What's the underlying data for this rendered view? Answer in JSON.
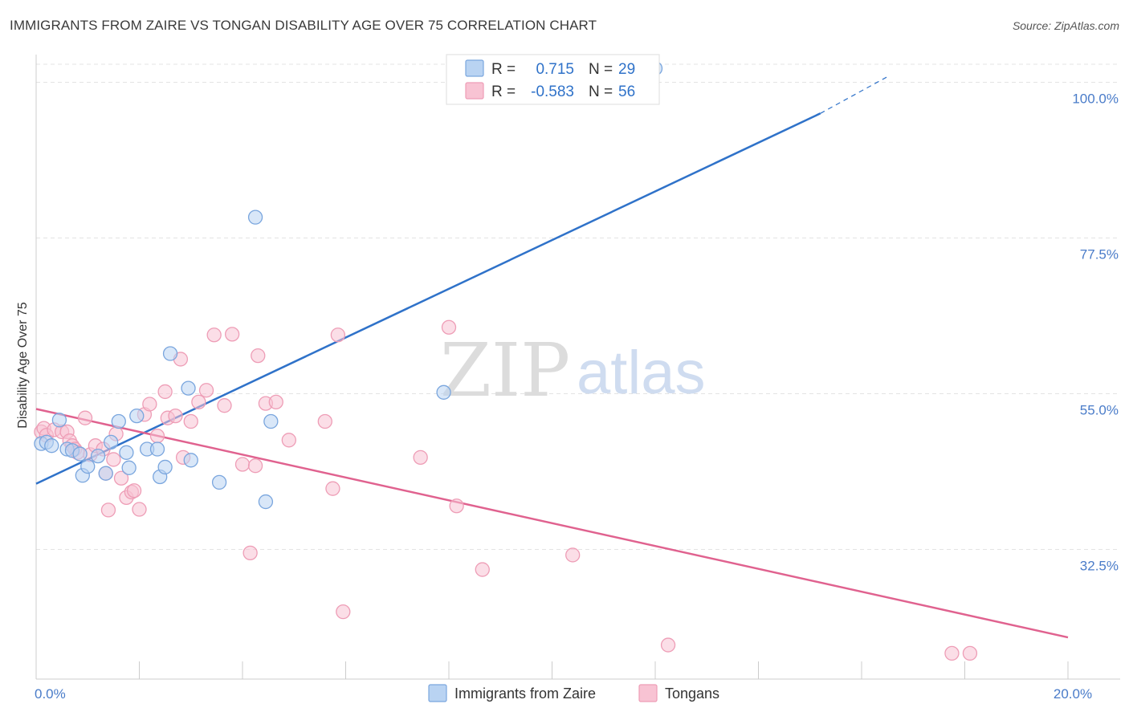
{
  "title": "IMMIGRANTS FROM ZAIRE VS TONGAN DISABILITY AGE OVER 75 CORRELATION CHART",
  "source": "Source: ZipAtlas.com",
  "watermark": {
    "zip": "ZIP",
    "atlas": "atlas"
  },
  "colors": {
    "blue_fill": "#b9d3f2",
    "blue_stroke": "#7aa6de",
    "blue_line": "#2f72c9",
    "pink_fill": "#f8c3d3",
    "pink_stroke": "#ee9db6",
    "pink_line": "#e0628f",
    "grid": "#e3e3e3",
    "tick_text": "#4a7cc9"
  },
  "legend": [
    {
      "r_label": "R =",
      "r_value": "0.715",
      "n_label": "N =",
      "n_value": "29"
    },
    {
      "r_label": "R =",
      "r_value": "-0.583",
      "n_label": "N =",
      "n_value": "56"
    }
  ],
  "chart_data": {
    "type": "scatter",
    "title": "IMMIGRANTS FROM ZAIRE VS TONGAN DISABILITY AGE OVER 75 CORRELATION CHART",
    "xlabel": "",
    "ylabel": "Disability Age Over 75",
    "xlim": [
      0,
      20
    ],
    "ylim": [
      15.4,
      104
    ],
    "x_tick_labels": [
      {
        "value": 0,
        "label": "0.0%"
      },
      {
        "value": 20,
        "label": "20.0%"
      }
    ],
    "x_minor_ticks": [
      2,
      4,
      6,
      8,
      10,
      12,
      14,
      16,
      18,
      20
    ],
    "y_ticks": [
      {
        "value": 32.5,
        "label": "32.5%"
      },
      {
        "value": 55.0,
        "label": "55.0%"
      },
      {
        "value": 77.5,
        "label": "77.5%"
      },
      {
        "value": 100.0,
        "label": "100.0%"
      }
    ],
    "series": [
      {
        "name": "Immigrants from Zaire",
        "color": "blue",
        "r": 0.715,
        "n": 29,
        "points": [
          [
            0.1,
            47.8
          ],
          [
            0.2,
            48.0
          ],
          [
            0.3,
            47.5
          ],
          [
            0.45,
            51.2
          ],
          [
            0.6,
            47.0
          ],
          [
            0.7,
            46.8
          ],
          [
            0.85,
            46.3
          ],
          [
            0.9,
            43.2
          ],
          [
            1.0,
            44.5
          ],
          [
            1.2,
            46.0
          ],
          [
            1.35,
            43.5
          ],
          [
            1.45,
            48.0
          ],
          [
            1.6,
            51.0
          ],
          [
            1.75,
            46.5
          ],
          [
            1.8,
            44.3
          ],
          [
            1.95,
            51.8
          ],
          [
            2.15,
            47.0
          ],
          [
            2.35,
            47.0
          ],
          [
            2.4,
            43.0
          ],
          [
            2.5,
            44.4
          ],
          [
            2.6,
            60.8
          ],
          [
            2.95,
            55.8
          ],
          [
            3.0,
            45.4
          ],
          [
            3.55,
            42.2
          ],
          [
            4.25,
            80.5
          ],
          [
            4.45,
            39.4
          ],
          [
            4.55,
            51.0
          ],
          [
            7.9,
            55.2
          ],
          [
            12.0,
            102.0
          ]
        ],
        "trend": {
          "x1": 0,
          "y1": 42.0,
          "x2": 15.2,
          "y2": 95.5,
          "dash_x2": 16.5,
          "dash_y2": 100.8
        }
      },
      {
        "name": "Tongans",
        "color": "pink",
        "r": -0.583,
        "n": 56,
        "points": [
          [
            0.1,
            49.5
          ],
          [
            0.15,
            50.0
          ],
          [
            0.2,
            49.0
          ],
          [
            0.35,
            49.8
          ],
          [
            0.5,
            49.5
          ],
          [
            0.6,
            49.5
          ],
          [
            0.65,
            48.2
          ],
          [
            0.7,
            47.5
          ],
          [
            0.75,
            47.0
          ],
          [
            0.8,
            46.5
          ],
          [
            0.95,
            51.5
          ],
          [
            1.05,
            46.2
          ],
          [
            1.15,
            47.5
          ],
          [
            1.3,
            47.0
          ],
          [
            1.35,
            43.5
          ],
          [
            1.4,
            38.2
          ],
          [
            1.5,
            45.5
          ],
          [
            1.55,
            49.2
          ],
          [
            1.65,
            42.8
          ],
          [
            1.75,
            40.0
          ],
          [
            1.85,
            40.8
          ],
          [
            1.9,
            41.0
          ],
          [
            2.0,
            38.3
          ],
          [
            2.1,
            52.0
          ],
          [
            2.2,
            53.5
          ],
          [
            2.35,
            48.9
          ],
          [
            2.5,
            55.3
          ],
          [
            2.55,
            51.5
          ],
          [
            2.7,
            51.8
          ],
          [
            2.8,
            60.0
          ],
          [
            2.85,
            45.8
          ],
          [
            3.0,
            51.0
          ],
          [
            3.15,
            53.8
          ],
          [
            3.3,
            55.5
          ],
          [
            3.45,
            63.5
          ],
          [
            3.65,
            53.3
          ],
          [
            3.8,
            63.6
          ],
          [
            4.0,
            44.8
          ],
          [
            4.15,
            32.0
          ],
          [
            4.25,
            44.6
          ],
          [
            4.3,
            60.5
          ],
          [
            4.45,
            53.6
          ],
          [
            4.65,
            53.8
          ],
          [
            4.9,
            48.3
          ],
          [
            5.6,
            51.0
          ],
          [
            5.75,
            41.3
          ],
          [
            5.85,
            63.5
          ],
          [
            5.95,
            23.5
          ],
          [
            7.45,
            45.8
          ],
          [
            8.0,
            64.6
          ],
          [
            8.15,
            38.8
          ],
          [
            8.65,
            29.6
          ],
          [
            10.4,
            31.7
          ],
          [
            12.25,
            18.7
          ],
          [
            17.75,
            17.5
          ],
          [
            18.1,
            17.5
          ]
        ],
        "trend": {
          "x1": 0,
          "y1": 52.8,
          "x2": 20,
          "y2": 19.8
        }
      }
    ]
  }
}
